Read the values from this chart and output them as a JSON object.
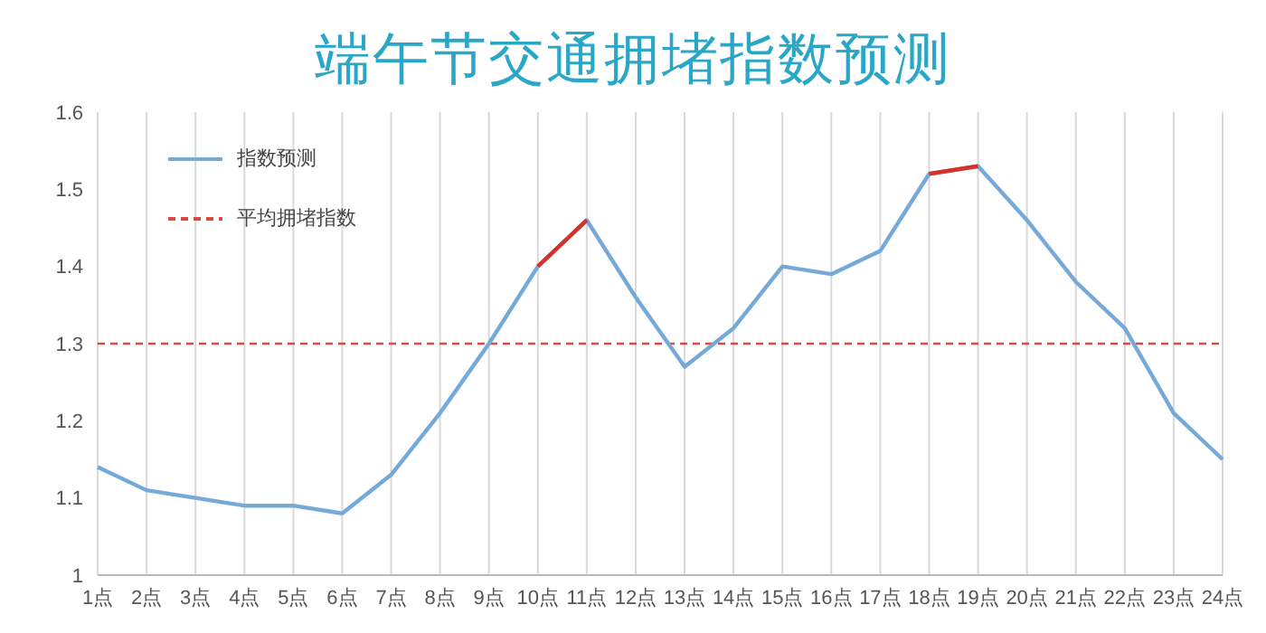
{
  "chart_data": {
    "type": "line",
    "title": "端午节交通拥堵指数预测",
    "categories": [
      "1点",
      "2点",
      "3点",
      "4点",
      "5点",
      "6点",
      "7点",
      "8点",
      "9点",
      "10点",
      "11点",
      "12点",
      "13点",
      "14点",
      "15点",
      "16点",
      "17点",
      "18点",
      "19点",
      "20点",
      "21点",
      "22点",
      "23点",
      "24点"
    ],
    "series": [
      {
        "name": "指数预测",
        "color": "#74a9d8",
        "values": [
          1.14,
          1.11,
          1.1,
          1.09,
          1.09,
          1.08,
          1.13,
          1.21,
          1.3,
          1.4,
          1.46,
          1.36,
          1.27,
          1.32,
          1.4,
          1.39,
          1.42,
          1.52,
          1.53,
          1.46,
          1.38,
          1.32,
          1.21,
          1.15
        ]
      },
      {
        "color": "#d9302a",
        "values": [
          null,
          null,
          null,
          null,
          null,
          null,
          null,
          null,
          null,
          1.4,
          1.46,
          null,
          null,
          null,
          null,
          null,
          null,
          1.52,
          1.53,
          null,
          null,
          null,
          null,
          null
        ]
      }
    ],
    "ylim": [
      1,
      1.6
    ],
    "yticks": [
      1,
      1.1,
      1.2,
      1.3,
      1.4,
      1.5,
      1.6
    ],
    "ref_lines": [
      {
        "axis": "y",
        "value": 1.3,
        "label": "平均拥堵指数",
        "color": "#e0473f",
        "line_style": "dashed"
      }
    ],
    "grid": "x",
    "legend": "top left",
    "marker": "none",
    "line_style": "solid"
  }
}
